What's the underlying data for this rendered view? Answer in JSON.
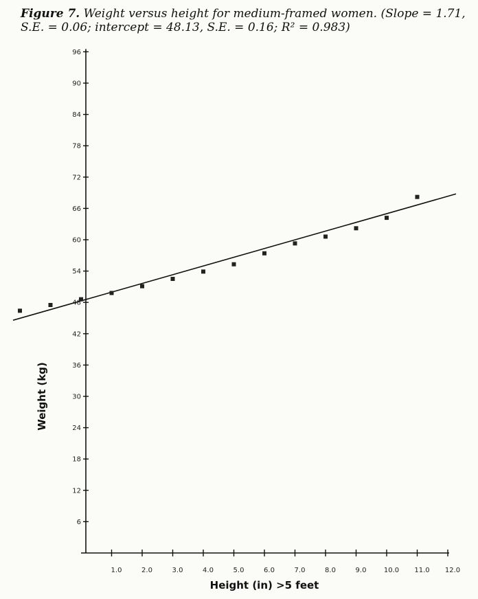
{
  "caption": {
    "figure_label": "Figure 7.",
    "text": "Weight versus height for medium-framed women. (Slope = 1.71, S.E. = 0.06; intercept = 48.13, S.E. = 0.16; R² = 0.983)"
  },
  "chart_data": {
    "type": "scatter",
    "title": "",
    "xlabel": "Height (in) >5 feet",
    "ylabel": "Weight (kg)",
    "xlim": [
      -2,
      12
    ],
    "ylim": [
      0,
      96
    ],
    "x_ticks": [
      1,
      2,
      3,
      4,
      5,
      6,
      7,
      8,
      9,
      10,
      11,
      12
    ],
    "x_tick_labels": [
      "1.0",
      "2.0",
      "3.0",
      "4.0",
      "5.0",
      "6.0",
      "7.0",
      "8.0",
      "9.0",
      "10.0",
      "11.0",
      "12.0"
    ],
    "y_ticks": [
      6,
      12,
      18,
      24,
      30,
      36,
      42,
      48,
      54,
      60,
      66,
      72,
      78,
      84,
      90,
      96
    ],
    "y_tick_labels": [
      "6",
      "12",
      "18",
      "24",
      "30",
      "36",
      "42",
      "48",
      "54",
      "60",
      "66",
      "72",
      "78",
      "84",
      "90",
      "96"
    ],
    "grid": false,
    "series": [
      {
        "points": [
          {
            "x": -2,
            "y": 46.4
          },
          {
            "x": -1,
            "y": 47.5
          },
          {
            "x": 0,
            "y": 48.6
          },
          {
            "x": 1,
            "y": 49.8
          },
          {
            "x": 2,
            "y": 51.1
          },
          {
            "x": 3,
            "y": 52.5
          },
          {
            "x": 4,
            "y": 53.9
          },
          {
            "x": 5,
            "y": 55.3
          },
          {
            "x": 6,
            "y": 57.4
          },
          {
            "x": 7,
            "y": 59.3
          },
          {
            "x": 8,
            "y": 60.6
          },
          {
            "x": 9,
            "y": 62.2
          },
          {
            "x": 10,
            "y": 64.2
          },
          {
            "x": 11,
            "y": 68.2
          }
        ]
      }
    ],
    "fit_line": {
      "slope": 1.71,
      "intercept": 48.13,
      "x_range": [
        -2,
        12
      ]
    }
  }
}
